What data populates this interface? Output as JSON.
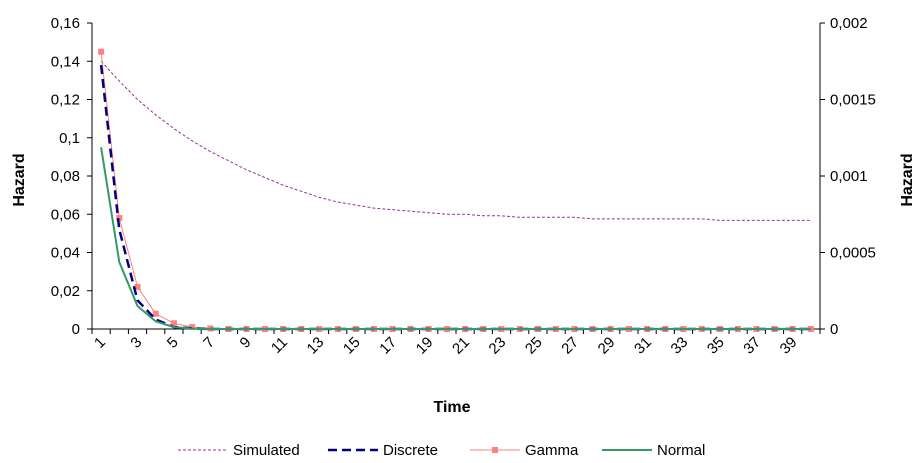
{
  "chart_data": {
    "type": "line",
    "title": "",
    "xlabel": "Time",
    "ylabel": "Hazard",
    "y2label": "Hazard",
    "x": [
      1,
      2,
      3,
      4,
      5,
      6,
      7,
      8,
      9,
      10,
      11,
      12,
      13,
      14,
      15,
      16,
      17,
      18,
      19,
      20,
      21,
      22,
      23,
      24,
      25,
      26,
      27,
      28,
      29,
      30,
      31,
      32,
      33,
      34,
      35,
      36,
      37,
      38,
      39,
      40
    ],
    "x_tick_labels": [
      "1",
      "3",
      "5",
      "7",
      "9",
      "11",
      "13",
      "15",
      "17",
      "19",
      "21",
      "23",
      "25",
      "27",
      "29",
      "31",
      "33",
      "35",
      "37",
      "39"
    ],
    "ylim": [
      0,
      0.16
    ],
    "y_ticks": [
      0,
      0.02,
      0.04,
      0.06,
      0.08,
      0.1,
      0.12,
      0.14,
      0.16
    ],
    "y_tick_labels": [
      "0",
      "0,02",
      "0,04",
      "0,06",
      "0,08",
      "0,1",
      "0,12",
      "0,14",
      "0,16"
    ],
    "y2lim": [
      0,
      0.002
    ],
    "y2_ticks": [
      0,
      0.0005,
      0.001,
      0.0015,
      0.002
    ],
    "y2_tick_labels": [
      "0",
      "0,0005",
      "0,001",
      "0,0015",
      "0,002"
    ],
    "legend_position": "bottom",
    "grid": false,
    "series": [
      {
        "name": "Simulated",
        "axis": "right",
        "color": "#993399",
        "style": "dotted",
        "values": [
          0.00175,
          0.00162,
          0.0015,
          0.0014,
          0.00131,
          0.00123,
          0.00116,
          0.0011,
          0.00104,
          0.00099,
          0.00094,
          0.0009,
          0.00086,
          0.00083,
          0.00081,
          0.00079,
          0.00078,
          0.00077,
          0.00076,
          0.00075,
          0.00075,
          0.00074,
          0.00074,
          0.00073,
          0.00073,
          0.00073,
          0.00073,
          0.00072,
          0.00072,
          0.00072,
          0.00072,
          0.00072,
          0.00072,
          0.00072,
          0.00071,
          0.00071,
          0.00071,
          0.00071,
          0.00071,
          0.00071
        ]
      },
      {
        "name": "Discrete",
        "axis": "left",
        "color": "#000080",
        "style": "dashed",
        "values": [
          0.138,
          0.052,
          0.015,
          0.005,
          0.001,
          0.0003,
          0,
          0,
          0,
          0,
          0,
          0,
          0,
          0,
          0,
          0,
          0,
          0,
          0,
          0,
          0,
          0,
          0,
          0,
          0,
          0,
          0,
          0,
          0,
          0,
          0,
          0,
          0,
          0,
          0,
          0,
          0,
          0,
          0,
          0
        ]
      },
      {
        "name": "Gamma",
        "axis": "left",
        "color": "#ff8080",
        "style": "solid-square",
        "values": [
          0.145,
          0.058,
          0.022,
          0.008,
          0.003,
          0.001,
          0.0003,
          0,
          0,
          0,
          0,
          0,
          0,
          0,
          0,
          0,
          0,
          0,
          0,
          0,
          0,
          0,
          0,
          0,
          0,
          0,
          0,
          0,
          0,
          0,
          0,
          0,
          0,
          0,
          0,
          0,
          0,
          0,
          0,
          0
        ]
      },
      {
        "name": "Normal",
        "axis": "left",
        "color": "#339966",
        "style": "solid",
        "values": [
          0.095,
          0.035,
          0.012,
          0.004,
          0.001,
          0.0002,
          0,
          0,
          0,
          0,
          0,
          0,
          0,
          0,
          0,
          0,
          0,
          0,
          0,
          0,
          0,
          0,
          0,
          0,
          0,
          0,
          0,
          0,
          0,
          0,
          0,
          0,
          0,
          0,
          0,
          0,
          0,
          0,
          0,
          0
        ]
      }
    ]
  }
}
